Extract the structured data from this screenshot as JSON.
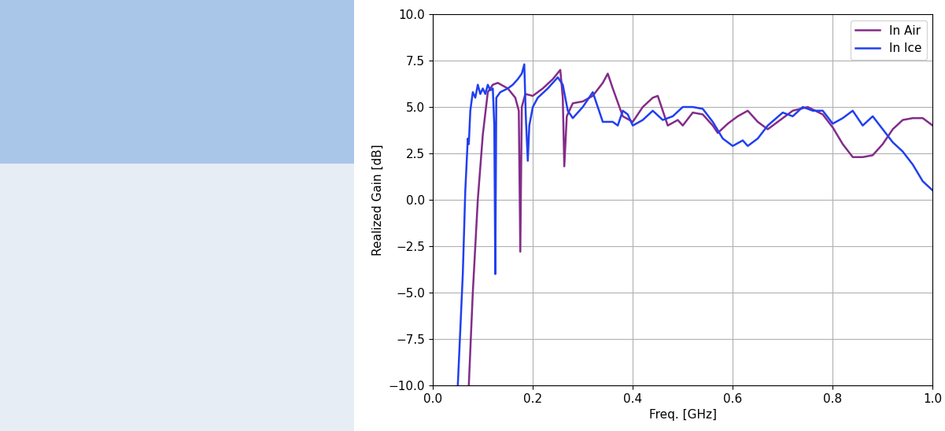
{
  "chart_data": {
    "type": "line",
    "x_label": "Freq. [GHz]",
    "y_label": "Realized Gain [dB]",
    "xlim": [
      0.0,
      1.0
    ],
    "ylim": [
      -10.0,
      10.0
    ],
    "xticks": [
      {
        "value": 0.0,
        "label": "0.0"
      },
      {
        "value": 0.2,
        "label": "0.2"
      },
      {
        "value": 0.4,
        "label": "0.4"
      },
      {
        "value": 0.6,
        "label": "0.6"
      },
      {
        "value": 0.8,
        "label": "0.8"
      },
      {
        "value": 1.0,
        "label": "1.0"
      }
    ],
    "yticks": [
      {
        "value": -10.0,
        "label": "−10.0"
      },
      {
        "value": -7.5,
        "label": "−7.5"
      },
      {
        "value": -5.0,
        "label": "−5.0"
      },
      {
        "value": -2.5,
        "label": "−2.5"
      },
      {
        "value": 0.0,
        "label": "0.0"
      },
      {
        "value": 2.5,
        "label": "2.5"
      },
      {
        "value": 5.0,
        "label": "5.0"
      },
      {
        "value": 7.5,
        "label": "7.5"
      },
      {
        "value": 10.0,
        "label": "10.0"
      }
    ],
    "grid": true,
    "legend": "upper right",
    "series": [
      {
        "name": "In Air",
        "color": "#832c8a",
        "x": [
          0.072,
          0.08,
          0.09,
          0.1,
          0.11,
          0.12,
          0.13,
          0.15,
          0.165,
          0.172,
          0.175,
          0.178,
          0.185,
          0.2,
          0.22,
          0.24,
          0.255,
          0.26,
          0.263,
          0.268,
          0.28,
          0.3,
          0.32,
          0.34,
          0.35,
          0.36,
          0.38,
          0.4,
          0.42,
          0.44,
          0.45,
          0.46,
          0.47,
          0.49,
          0.5,
          0.52,
          0.54,
          0.56,
          0.57,
          0.59,
          0.61,
          0.63,
          0.65,
          0.67,
          0.69,
          0.72,
          0.75,
          0.78,
          0.8,
          0.82,
          0.84,
          0.86,
          0.88,
          0.9,
          0.92,
          0.94,
          0.96,
          0.98,
          1.0
        ],
        "values": [
          -10.0,
          -5.0,
          0.0,
          3.5,
          5.8,
          6.2,
          6.3,
          6.0,
          5.5,
          4.8,
          -2.8,
          5.0,
          5.7,
          5.6,
          6.0,
          6.5,
          7.0,
          5.5,
          1.8,
          4.5,
          5.2,
          5.3,
          5.6,
          6.3,
          6.8,
          6.0,
          4.5,
          4.2,
          5.0,
          5.5,
          5.6,
          4.8,
          4.0,
          4.3,
          4.0,
          4.7,
          4.6,
          4.0,
          3.6,
          4.1,
          4.5,
          4.8,
          4.2,
          3.8,
          4.2,
          4.8,
          5.0,
          4.6,
          3.9,
          3.0,
          2.3,
          2.3,
          2.4,
          3.0,
          3.8,
          4.3,
          4.4,
          4.4,
          4.0
        ]
      },
      {
        "name": "In Ice",
        "color": "#2040f0",
        "x": [
          0.05,
          0.06,
          0.065,
          0.07,
          0.072,
          0.075,
          0.08,
          0.085,
          0.09,
          0.095,
          0.1,
          0.105,
          0.11,
          0.115,
          0.12,
          0.123,
          0.125,
          0.127,
          0.135,
          0.15,
          0.16,
          0.17,
          0.178,
          0.183,
          0.186,
          0.19,
          0.193,
          0.2,
          0.21,
          0.23,
          0.25,
          0.26,
          0.27,
          0.28,
          0.3,
          0.32,
          0.33,
          0.34,
          0.36,
          0.37,
          0.38,
          0.39,
          0.4,
          0.42,
          0.44,
          0.46,
          0.48,
          0.5,
          0.52,
          0.54,
          0.56,
          0.58,
          0.6,
          0.62,
          0.63,
          0.65,
          0.67,
          0.7,
          0.72,
          0.74,
          0.76,
          0.78,
          0.8,
          0.82,
          0.84,
          0.86,
          0.88,
          0.9,
          0.92,
          0.94,
          0.96,
          0.98,
          1.0
        ],
        "values": [
          -10.0,
          -4.0,
          0.5,
          3.3,
          3.0,
          4.8,
          5.8,
          5.5,
          6.2,
          5.7,
          6.0,
          5.7,
          6.2,
          5.9,
          6.0,
          4.0,
          -4.0,
          5.5,
          5.8,
          6.0,
          6.2,
          6.5,
          6.8,
          7.3,
          4.5,
          2.1,
          4.0,
          5.0,
          5.5,
          6.0,
          6.6,
          6.2,
          4.8,
          4.4,
          5.0,
          5.8,
          5.0,
          4.2,
          4.2,
          4.0,
          4.8,
          4.6,
          4.0,
          4.3,
          4.8,
          4.3,
          4.5,
          5.0,
          5.0,
          4.9,
          4.2,
          3.3,
          2.9,
          3.2,
          2.9,
          3.3,
          4.0,
          4.7,
          4.5,
          5.0,
          4.8,
          4.8,
          4.1,
          4.4,
          4.8,
          4.0,
          4.5,
          3.8,
          3.1,
          2.6,
          1.9,
          1.0,
          0.5
        ]
      }
    ]
  }
}
